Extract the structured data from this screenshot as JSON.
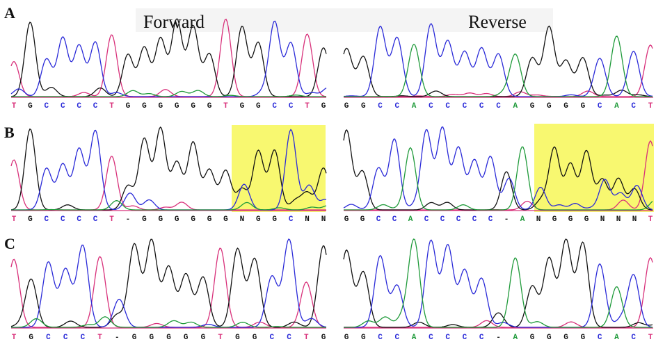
{
  "header": {
    "forward": "Forward",
    "reverse": "Reverse"
  },
  "panels": [
    {
      "label": "A",
      "forward": [
        "T",
        "G",
        "C",
        "C",
        "C",
        "C",
        "T",
        "G",
        "G",
        "G",
        "G",
        "G",
        "G",
        "T",
        "G",
        "G",
        "C",
        "C",
        "T",
        "G"
      ],
      "reverse": [
        "G",
        "G",
        "C",
        "C",
        "A",
        "C",
        "C",
        "C",
        "C",
        "C",
        "A",
        "G",
        "G",
        "G",
        "G",
        "C",
        "A",
        "C",
        "T"
      ]
    },
    {
      "label": "B",
      "forward": [
        "T",
        "G",
        "C",
        "C",
        "C",
        "C",
        "T",
        "-",
        "G",
        "G",
        "G",
        "G",
        "G",
        "G",
        "N",
        "G",
        "G",
        "C",
        "N",
        "N"
      ],
      "reverse": [
        "G",
        "G",
        "C",
        "C",
        "A",
        "C",
        "C",
        "C",
        "C",
        "C",
        "-",
        "A",
        "N",
        "G",
        "G",
        "G",
        "N",
        "N",
        "N",
        "T"
      ]
    },
    {
      "label": "C",
      "forward": [
        "T",
        "G",
        "C",
        "C",
        "C",
        "T",
        "-",
        "G",
        "G",
        "G",
        "G",
        "G",
        "T",
        "G",
        "G",
        "C",
        "C",
        "T",
        "G"
      ],
      "reverse": [
        "G",
        "G",
        "C",
        "C",
        "A",
        "C",
        "C",
        "C",
        "C",
        "-",
        "A",
        "G",
        "G",
        "G",
        "G",
        "C",
        "A",
        "C",
        "T"
      ]
    }
  ]
}
